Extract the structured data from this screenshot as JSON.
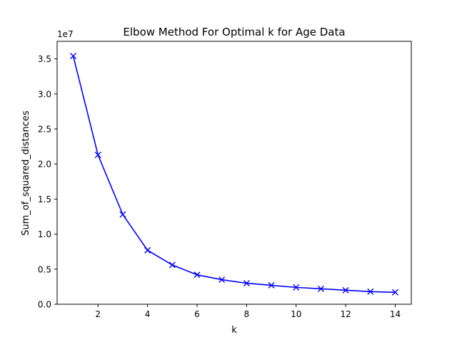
{
  "chart_data": {
    "type": "line",
    "title": "Elbow Method For Optimal k for Age Data",
    "xlabel": "k",
    "ylabel": "Sum_of_squared_distances",
    "y_offset_label": "1e7",
    "y_scale_factor": 10000000,
    "xlim": [
      0.35,
      14.65
    ],
    "ylim": [
      0,
      37500000
    ],
    "x_ticks": [
      2,
      4,
      6,
      8,
      10,
      12,
      14
    ],
    "x_tick_labels": [
      "2",
      "4",
      "6",
      "8",
      "10",
      "12",
      "14"
    ],
    "y_ticks": [
      0,
      5000000,
      10000000,
      15000000,
      20000000,
      25000000,
      30000000,
      35000000
    ],
    "y_tick_labels": [
      "0.0",
      "0.5",
      "1.0",
      "1.5",
      "2.0",
      "2.5",
      "3.0",
      "3.5"
    ],
    "grid": false,
    "marker": "x",
    "color": "#0000ff",
    "x": [
      1,
      2,
      3,
      4,
      5,
      6,
      7,
      8,
      9,
      10,
      11,
      12,
      13,
      14
    ],
    "series": [
      {
        "values": [
          35400000,
          21300000,
          12800000,
          7700000,
          5600000,
          4200000,
          3500000,
          3000000,
          2700000,
          2400000,
          2200000,
          2000000,
          1800000,
          1700000
        ]
      }
    ]
  }
}
